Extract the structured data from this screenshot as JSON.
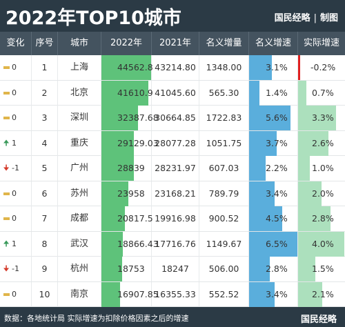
{
  "header": {
    "title": "2022年TOP10城市",
    "brand_left": "国民经略",
    "brand_sep": "|",
    "brand_right": "制图"
  },
  "columns": [
    "变化",
    "序号",
    "城市",
    "2022年",
    "2021年",
    "名义增量",
    "名义增速",
    "实际增速"
  ],
  "rows": [
    {
      "change_icon": "flat-icon",
      "change": "0",
      "rank": "1",
      "city": "上海",
      "y2022": "44562.8",
      "y2021": "43214.80",
      "increase": "1348.00",
      "nominal": "3.1%",
      "real": "-0.2%",
      "v2022": 44562.8,
      "nominal_v": 3.1,
      "real_v": -0.2
    },
    {
      "change_icon": "flat-icon",
      "change": "0",
      "rank": "2",
      "city": "北京",
      "y2022": "41610.9",
      "y2021": "41045.60",
      "increase": "565.30",
      "nominal": "1.4%",
      "real": "0.7%",
      "v2022": 41610.9,
      "nominal_v": 1.4,
      "real_v": 0.7
    },
    {
      "change_icon": "flat-icon",
      "change": "0",
      "rank": "3",
      "city": "深圳",
      "y2022": "32387.68",
      "y2021": "30664.85",
      "increase": "1722.83",
      "nominal": "5.6%",
      "real": "3.3%",
      "v2022": 32387.68,
      "nominal_v": 5.6,
      "real_v": 3.3
    },
    {
      "change_icon": "up-icon",
      "change": "1",
      "rank": "4",
      "city": "重庆",
      "y2022": "29129.03",
      "y2021": "28077.28",
      "increase": "1051.75",
      "nominal": "3.7%",
      "real": "2.6%",
      "v2022": 29129.03,
      "nominal_v": 3.7,
      "real_v": 2.6
    },
    {
      "change_icon": "down-icon",
      "change": "-1",
      "rank": "5",
      "city": "广州",
      "y2022": "28839",
      "y2021": "28231.97",
      "increase": "607.03",
      "nominal": "2.2%",
      "real": "1.0%",
      "v2022": 28839,
      "nominal_v": 2.2,
      "real_v": 1.0
    },
    {
      "change_icon": "flat-icon",
      "change": "0",
      "rank": "6",
      "city": "苏州",
      "y2022": "23958",
      "y2021": "23168.21",
      "increase": "789.79",
      "nominal": "3.4%",
      "real": "2.0%",
      "v2022": 23958,
      "nominal_v": 3.4,
      "real_v": 2.0
    },
    {
      "change_icon": "flat-icon",
      "change": "0",
      "rank": "7",
      "city": "成都",
      "y2022": "20817.5",
      "y2021": "19916.98",
      "increase": "900.52",
      "nominal": "4.5%",
      "real": "2.8%",
      "v2022": 20817.5,
      "nominal_v": 4.5,
      "real_v": 2.8
    },
    {
      "change_icon": "up-icon",
      "change": "1",
      "rank": "8",
      "city": "武汉",
      "y2022": "18866.43",
      "y2021": "17716.76",
      "increase": "1149.67",
      "nominal": "6.5%",
      "real": "4.0%",
      "v2022": 18866.43,
      "nominal_v": 6.5,
      "real_v": 4.0
    },
    {
      "change_icon": "down-icon",
      "change": "-1",
      "rank": "9",
      "city": "杭州",
      "y2022": "18753",
      "y2021": "18247",
      "increase": "506.00",
      "nominal": "2.8%",
      "real": "1.5%",
      "v2022": 18753,
      "nominal_v": 2.8,
      "real_v": 1.5
    },
    {
      "change_icon": "flat-icon",
      "change": "0",
      "rank": "10",
      "city": "南京",
      "y2022": "16907.85",
      "y2021": "16355.33",
      "increase": "552.52",
      "nominal": "3.4%",
      "real": "2.1%",
      "v2022": 16907.85,
      "nominal_v": 3.4,
      "real_v": 2.1
    }
  ],
  "footer": {
    "source": "数据：各地统计局  实际增速为扣除价格因素之后的增速",
    "brand": "国民经略"
  },
  "colors": {
    "bar_2022": "#5ec27a",
    "bar_nominal": "#5aaedc",
    "bar_real": "#ace0bd",
    "bar_negative": "#e02020",
    "header_bg": "#2b3a45"
  }
}
